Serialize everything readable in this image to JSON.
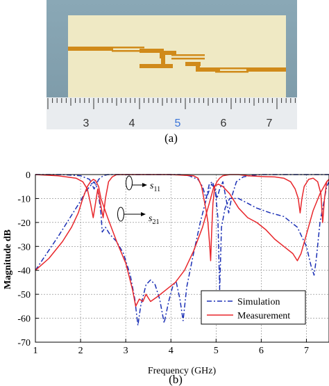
{
  "panel_a": {
    "caption": "(a)",
    "ruler_labels": [
      "3",
      "4",
      "5",
      "6",
      "7"
    ],
    "ruler_highlight_label": "5",
    "colors": {
      "substrate": "#efe9c4",
      "trace": "#d08a1a",
      "background": "#87a6b4",
      "ruler": "#e9ecef",
      "highlight": "#3a74d8"
    }
  },
  "panel_b": {
    "caption": "(b)",
    "annotations": {
      "s11": "s11",
      "s21": "s21"
    }
  },
  "chart_data": {
    "type": "line",
    "title": "",
    "xlabel": "Frequency (GHz)",
    "ylabel": "Magnitude dB",
    "xlim": [
      1,
      7.5
    ],
    "ylim": [
      -70,
      0
    ],
    "xticks": [
      1,
      2,
      3,
      4,
      5,
      6,
      7
    ],
    "yticks": [
      0,
      -10,
      -20,
      -30,
      -40,
      -50,
      -60,
      -70
    ],
    "legend_position": "bottom-right",
    "series": [
      {
        "name": "Simulation",
        "color": "#1a2fb5",
        "style": "dashdot",
        "curves": [
          {
            "label": "s21",
            "x": [
              1.0,
              1.5,
              1.8,
              2.0,
              2.1,
              2.2,
              2.3,
              2.38,
              2.45,
              2.48,
              2.55,
              2.65,
              2.8,
              2.95,
              3.1,
              3.2,
              3.27,
              3.33,
              3.45,
              3.55,
              3.65,
              3.75,
              3.85,
              3.95,
              4.05,
              4.12,
              4.2,
              4.27,
              4.35,
              4.5,
              4.65,
              4.8,
              4.9,
              4.98,
              5.04,
              5.08,
              5.12,
              5.2,
              5.3,
              5.5,
              5.7,
              5.9,
              6.2,
              6.5,
              6.8,
              7.0,
              7.1,
              7.17,
              7.22,
              7.3,
              7.45,
              7.5
            ],
            "y": [
              -40,
              -26,
              -17,
              -11,
              -7.5,
              -5,
              -3,
              -6,
              -16,
              -24,
              -22,
              -25,
              -28,
              -33,
              -42,
              -52,
              -63,
              -55,
              -46,
              -44,
              -46,
              -52,
              -62,
              -53,
              -46,
              -45,
              -52,
              -61,
              -47,
              -33,
              -20,
              -9,
              -4,
              -6,
              -18,
              -48,
              -22,
              -14,
              -10,
              -10,
              -12,
              -14,
              -16,
              -17.5,
              -22,
              -30,
              -38,
              -42,
              -35,
              -20,
              -5,
              -3
            ]
          },
          {
            "label": "s11",
            "x": [
              1.0,
              1.6,
              2.0,
              2.2,
              2.3,
              2.4,
              2.5,
              2.6,
              2.8,
              3.0,
              3.2,
              3.4,
              3.6,
              3.8,
              4.0,
              4.2,
              4.4,
              4.6,
              4.7,
              4.78,
              4.85,
              4.92,
              4.97,
              5.02,
              5.08,
              5.15,
              5.22,
              5.28,
              5.35,
              5.45,
              5.6,
              5.8,
              6.0,
              6.2,
              6.4,
              6.6,
              6.8,
              7.0,
              7.2,
              7.5
            ],
            "y": [
              0,
              0,
              -0.5,
              -2,
              -6,
              -2,
              -0.5,
              0,
              0,
              0,
              0,
              0,
              0,
              0,
              0,
              0,
              -0.5,
              -2,
              -5,
              -10,
              -4,
              -3,
              -6,
              -10,
              -6,
              -3,
              -10,
              -16,
              -9,
              -3,
              -1,
              -0.3,
              0,
              0,
              0,
              0,
              0,
              0,
              0,
              0
            ]
          }
        ]
      },
      {
        "name": "Measurement",
        "color": "#e8262b",
        "style": "solid",
        "curves": [
          {
            "label": "s21",
            "x": [
              1.0,
              1.3,
              1.6,
              1.8,
              1.95,
              2.05,
              2.15,
              2.22,
              2.28,
              2.33,
              2.4,
              2.45,
              2.6,
              2.8,
              3.0,
              3.15,
              3.22,
              3.3,
              3.38,
              3.45,
              3.55,
              3.7,
              3.9,
              4.1,
              4.3,
              4.5,
              4.7,
              4.85,
              4.95,
              5.05,
              5.15,
              5.3,
              5.5,
              5.7,
              5.9,
              6.1,
              6.3,
              6.5,
              6.7,
              6.8,
              6.88,
              7.0,
              7.15,
              7.3,
              7.45,
              7.5
            ],
            "y": [
              -40,
              -35,
              -28,
              -22,
              -16,
              -10,
              -5,
              -3,
              -2,
              -2.5,
              -5,
              -10,
              -18,
              -28,
              -37,
              -48,
              -55,
              -52,
              -53,
              -50,
              -53,
              -51,
              -48,
              -45,
              -40,
              -32,
              -22,
              -12,
              -5,
              -4,
              -5,
              -8,
              -14,
              -18,
              -20,
              -23,
              -27,
              -30,
              -33,
              -36,
              -33,
              -25,
              -15,
              -8,
              -3,
              -2
            ]
          },
          {
            "label": "s11",
            "x": [
              1.0,
              1.5,
              1.9,
              2.05,
              2.15,
              2.22,
              2.28,
              2.33,
              2.38,
              2.44,
              2.5,
              2.55,
              2.62,
              2.7,
              2.8,
              3.0,
              3.5,
              4.0,
              4.5,
              4.6,
              4.68,
              4.73,
              4.78,
              4.82,
              4.86,
              4.88,
              4.9,
              4.93,
              4.97,
              5.02,
              5.08,
              5.15,
              5.3,
              5.5,
              5.7,
              6.0,
              6.3,
              6.5,
              6.65,
              6.75,
              6.82,
              6.86,
              6.9,
              6.95,
              7.05,
              7.15,
              7.25,
              7.32,
              7.36,
              7.4,
              7.45,
              7.5
            ],
            "y": [
              0,
              -0.5,
              -1.5,
              -3,
              -6,
              -12,
              -18,
              -12,
              -6,
              -12,
              -18,
              -10,
              -3,
              -1,
              0,
              0,
              0,
              0,
              -0.5,
              -1.5,
              -5,
              -10,
              -15,
              -20,
              -30,
              -36,
              -25,
              -12,
              -5,
              -3,
              -1.5,
              -0.5,
              0,
              0,
              -0.5,
              -0.8,
              -1,
              -1.5,
              -3,
              -6,
              -10,
              -16,
              -10,
              -5,
              -2,
              -1.5,
              -3,
              -8,
              -20,
              -10,
              -3,
              -2
            ]
          }
        ]
      }
    ]
  }
}
